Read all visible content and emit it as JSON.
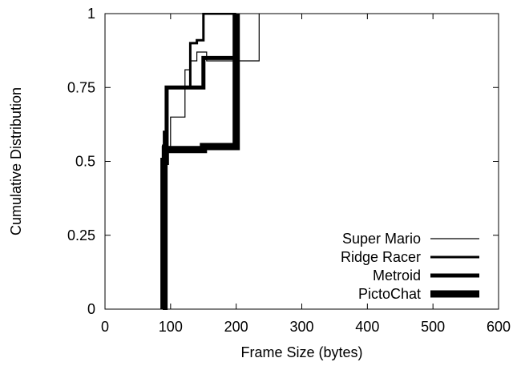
{
  "chart_data": {
    "type": "line",
    "step": true,
    "xlabel": "Frame Size (bytes)",
    "ylabel": "Cumulative Distribution",
    "xlim": [
      0,
      600
    ],
    "ylim": [
      0,
      1
    ],
    "x_ticks": [
      0,
      100,
      200,
      300,
      400,
      500,
      600
    ],
    "y_ticks": [
      0,
      0.25,
      0.5,
      0.75,
      1
    ],
    "y_tick_labels": [
      "0",
      "0.25",
      "0.5",
      "0.75",
      "1"
    ],
    "grid": false,
    "legend_position": "bottom-right",
    "series": [
      {
        "name": "Super Mario",
        "line_weight": "thin",
        "x": [
          88,
          90,
          90,
          100,
          100,
          122,
          122,
          130,
          130,
          140,
          140,
          155,
          155,
          200,
          200,
          235,
          235
        ],
        "y": [
          0,
          0,
          0.55,
          0.55,
          0.65,
          0.65,
          0.81,
          0.81,
          0.84,
          0.84,
          0.87,
          0.87,
          0.84,
          0.84,
          0.84,
          0.84,
          1.0
        ]
      },
      {
        "name": "Ridge Racer",
        "line_weight": "medium",
        "x": [
          88,
          90,
          90,
          93,
          93,
          130,
          130,
          140,
          140,
          150,
          150,
          200,
          200
        ],
        "y": [
          0,
          0,
          0.6,
          0.6,
          0.75,
          0.75,
          0.9,
          0.9,
          0.91,
          0.91,
          1.0,
          1.0,
          1.0
        ]
      },
      {
        "name": "Metroid",
        "line_weight": "thick",
        "x": [
          88,
          90,
          90,
          94,
          94,
          125,
          125,
          150,
          150,
          200,
          200
        ],
        "y": [
          0,
          0,
          0.55,
          0.55,
          0.75,
          0.75,
          0.75,
          0.75,
          0.85,
          0.85,
          1.0
        ]
      },
      {
        "name": "PictoChat",
        "line_weight": "extra-thick",
        "x": [
          89,
          90,
          90,
          92,
          92,
          150,
          150,
          200,
          200
        ],
        "y": [
          0,
          0,
          0.5,
          0.5,
          0.54,
          0.54,
          0.55,
          0.55,
          1.0
        ]
      }
    ]
  }
}
